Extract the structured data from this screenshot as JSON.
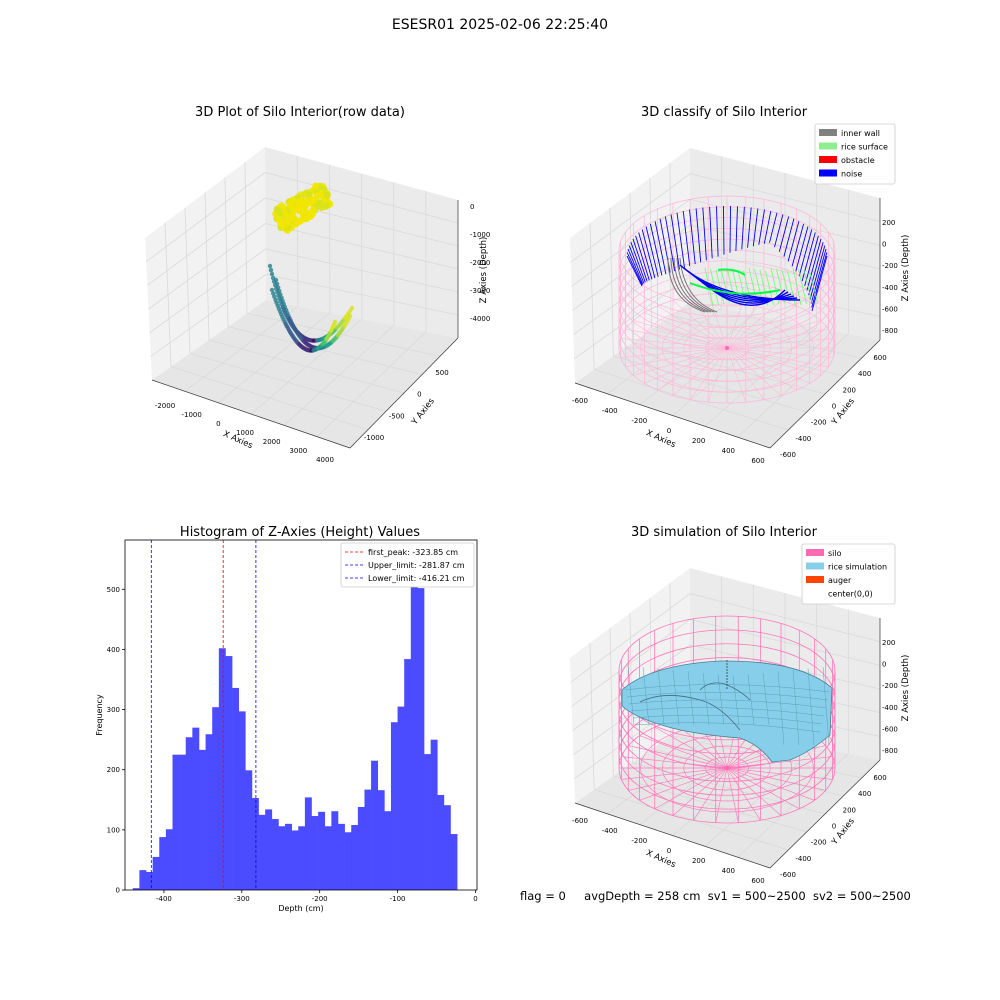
{
  "figure": {
    "title": "ESESR01 2025-02-06 22:25:40",
    "footer": {
      "flag": "flag = 0",
      "avg_depth": "avgDepth = 258 cm",
      "sv1": "sv1 = 500~2500",
      "sv2": "sv2 = 500~2500"
    }
  },
  "chart_data": [
    {
      "type": "scatter3d",
      "title": "3D Plot of Silo Interior(row data)",
      "xlabel": "X Axies",
      "ylabel": "Y Axies",
      "zlabel": "Z Axies (Depth)",
      "x_ticks": [
        "-2000",
        "-1000",
        "0",
        "1000",
        "2000",
        "3000",
        "4000"
      ],
      "y_ticks": [
        "-1000",
        "-500",
        "0",
        "500"
      ],
      "z_ticks": [
        "-4000",
        "-3000",
        "-2000",
        "-1000",
        "0"
      ],
      "grid": true,
      "colormap": "viridis"
    },
    {
      "type": "scatter3d",
      "title": "3D classify of Silo Interior",
      "xlabel": "X Axies",
      "ylabel": "Y Axies",
      "zlabel": "Z Axies (Depth)",
      "x_ticks": [
        "-600",
        "-400",
        "-200",
        "0",
        "200",
        "400",
        "600"
      ],
      "y_ticks": [
        "-600",
        "-400",
        "-200",
        "0",
        "200",
        "400",
        "600"
      ],
      "z_ticks": [
        "-800",
        "-600",
        "-400",
        "-200",
        "0",
        "200"
      ],
      "grid": true,
      "legend_position": "top-right",
      "legend": [
        {
          "label": "inner wall",
          "color": "#808080"
        },
        {
          "label": "rice surface",
          "color": "#90ee90"
        },
        {
          "label": "obstacle",
          "color": "#ff0000"
        },
        {
          "label": "noise",
          "color": "#0000ff"
        }
      ]
    },
    {
      "type": "bar",
      "title": "Histogram of Z-Axies (Height) Values",
      "xlabel": "Depth (cm)",
      "ylabel": "Frequency",
      "xlim": [
        -450,
        2
      ],
      "ylim": [
        0,
        582
      ],
      "x_ticks": [
        "-400",
        "-300",
        "-200",
        "-100",
        "0"
      ],
      "y_ticks": [
        "0",
        "100",
        "200",
        "300",
        "400",
        "500"
      ],
      "bar_color": "#4b4bff",
      "bin_start": -440,
      "bin_width": 8.5,
      "values": [
        3,
        33,
        30,
        55,
        88,
        101,
        225,
        225,
        254,
        270,
        233,
        259,
        304,
        402,
        389,
        336,
        297,
        199,
        153,
        125,
        134,
        118,
        106,
        110,
        99,
        106,
        154,
        123,
        130,
        106,
        131,
        110,
        96,
        108,
        138,
        167,
        215,
        166,
        131,
        279,
        305,
        384,
        555,
        502,
        226,
        250,
        158,
        141,
        93
      ],
      "lines": [
        {
          "label": "first_peak: -323.85 cm",
          "x": -323.85,
          "color": "#ff0000"
        },
        {
          "label": "Upper_limit: -281.87 cm",
          "x": -281.87,
          "color": "#0000ff"
        },
        {
          "label": "Lower_limit: -416.21 cm",
          "x": -416.21,
          "color": "#0000ff"
        }
      ],
      "legend_position": "top-right"
    },
    {
      "type": "surface3d",
      "title": "3D simulation of Silo Interior",
      "xlabel": "X Axies",
      "ylabel": "Y Axies",
      "zlabel": "Z Axies (Depth)",
      "x_ticks": [
        "-600",
        "-400",
        "-200",
        "0",
        "200",
        "400",
        "600"
      ],
      "y_ticks": [
        "-600",
        "-400",
        "-200",
        "0",
        "200",
        "400",
        "600"
      ],
      "z_ticks": [
        "-800",
        "-600",
        "-400",
        "-200",
        "0",
        "200"
      ],
      "grid": true,
      "legend_position": "top-right",
      "legend": [
        {
          "label": "silo",
          "color": "#ff69b4"
        },
        {
          "label": "rice simulation",
          "color": "#87ceeb"
        },
        {
          "label": "auger",
          "color": "#ff4500"
        },
        {
          "label": "center(0,0)",
          "color": ""
        }
      ]
    }
  ]
}
